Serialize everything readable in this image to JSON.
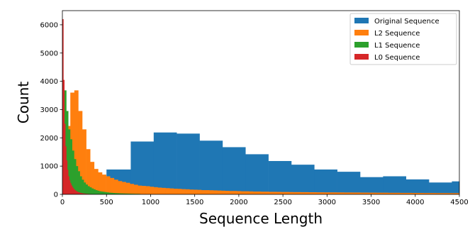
{
  "chart_data": {
    "type": "bar",
    "title": "",
    "xlabel": "Sequence Length",
    "ylabel": "Count",
    "xlim": [
      0,
      4500
    ],
    "ylim": [
      0,
      6500
    ],
    "xticks": [
      0,
      500,
      1000,
      1500,
      2000,
      2500,
      3000,
      3500,
      4000,
      4500
    ],
    "yticks": [
      0,
      1000,
      2000,
      3000,
      4000,
      5000,
      6000
    ],
    "grid": false,
    "legend_position": "top-right",
    "series": [
      {
        "name": "Original Sequence",
        "color": "#1f77b4",
        "bins": [
          {
            "x0": 500,
            "x1": 775,
            "y": 880
          },
          {
            "x0": 775,
            "x1": 1035,
            "y": 1870
          },
          {
            "x0": 1035,
            "x1": 1295,
            "y": 2190
          },
          {
            "x0": 1295,
            "x1": 1555,
            "y": 2150
          },
          {
            "x0": 1555,
            "x1": 1815,
            "y": 1900
          },
          {
            "x0": 1815,
            "x1": 2075,
            "y": 1670
          },
          {
            "x0": 2075,
            "x1": 2335,
            "y": 1420
          },
          {
            "x0": 2335,
            "x1": 2595,
            "y": 1180
          },
          {
            "x0": 2595,
            "x1": 2855,
            "y": 1050
          },
          {
            "x0": 2855,
            "x1": 3115,
            "y": 880
          },
          {
            "x0": 3115,
            "x1": 3375,
            "y": 800
          },
          {
            "x0": 3375,
            "x1": 3635,
            "y": 610
          },
          {
            "x0": 3635,
            "x1": 3895,
            "y": 640
          },
          {
            "x0": 3895,
            "x1": 4155,
            "y": 530
          },
          {
            "x0": 4155,
            "x1": 4415,
            "y": 420
          },
          {
            "x0": 4415,
            "x1": 4500,
            "y": 460
          }
        ]
      },
      {
        "name": "L2 Sequence",
        "color": "#ff7f0e",
        "bin_start": 0,
        "bin_width": 45,
        "values": [
          800,
          2420,
          3600,
          3680,
          2950,
          2300,
          1600,
          1150,
          900,
          780,
          700,
          640,
          580,
          520,
          470,
          440,
          410,
          370,
          340,
          310,
          300,
          290,
          270,
          255,
          240,
          230,
          220,
          210,
          200,
          195,
          185,
          180,
          170,
          165,
          160,
          150,
          150,
          145,
          140,
          135,
          130,
          125,
          120,
          120,
          115,
          110,
          110,
          105,
          100,
          100,
          95,
          95,
          90,
          90,
          88,
          85,
          85,
          82,
          80,
          80,
          78,
          78,
          75,
          75,
          72,
          72,
          70,
          70,
          70,
          68,
          68,
          66,
          66,
          65,
          65,
          62,
          62,
          60,
          60,
          58,
          58,
          58,
          55,
          55,
          55,
          52,
          52,
          52,
          50,
          50,
          50,
          48,
          48,
          48,
          46,
          46,
          46,
          45,
          45,
          45
        ]
      },
      {
        "name": "L1 Sequence",
        "color": "#2ca02c",
        "bin_start": 0,
        "bin_width": 22,
        "values": [
          3700,
          3680,
          2950,
          2300,
          1950,
          1550,
          1250,
          1000,
          820,
          640,
          520,
          420,
          350,
          290,
          250,
          210,
          180,
          150,
          130,
          110,
          100,
          90,
          80,
          70,
          60,
          55,
          50,
          45,
          42,
          38,
          35,
          32,
          30,
          28,
          26,
          24,
          22,
          20,
          19,
          18
        ]
      },
      {
        "name": "L0 Sequence",
        "color": "#d62728",
        "bin_start": 0,
        "bin_width": 11,
        "values": [
          6200,
          4050,
          2500,
          1700,
          1200,
          870,
          640,
          500,
          400,
          320,
          260,
          210,
          170,
          140,
          115,
          95,
          80,
          68,
          56,
          48,
          40,
          34,
          30,
          26,
          22,
          19,
          16,
          14,
          12,
          10
        ]
      }
    ]
  }
}
